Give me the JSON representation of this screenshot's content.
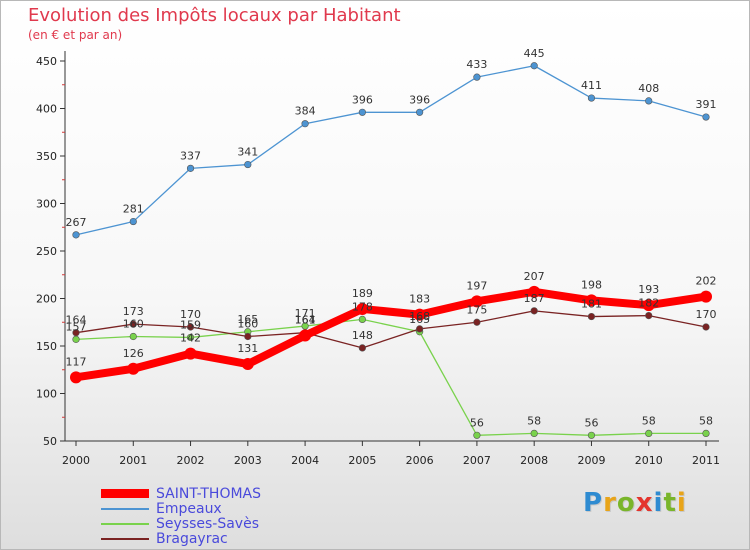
{
  "header": {
    "title": "Evolution des Impôts locaux par Habitant",
    "subtitle": "(en € et par an)"
  },
  "brand": {
    "letters": [
      "P",
      "r",
      "o",
      "x",
      "i",
      "t",
      "i"
    ],
    "colors": [
      "#2e8bd1",
      "#e8a419",
      "#79b52a",
      "#e4342d",
      "#2e8bd1",
      "#79b52a",
      "#e8a419"
    ]
  },
  "colors": {
    "title": "#e0394d",
    "legend_text": "#4a4adb",
    "axis": "#333333"
  },
  "chart_data": {
    "type": "line",
    "x": [
      "2000",
      "2001",
      "2002",
      "2003",
      "2004",
      "2005",
      "2006",
      "2007",
      "2008",
      "2009",
      "2010",
      "2011"
    ],
    "xlabel": "",
    "ylabel": "",
    "ylim": [
      50,
      450
    ],
    "yticks": [
      50,
      100,
      150,
      200,
      250,
      300,
      350,
      400,
      450
    ],
    "grid": false,
    "legend_position": "bottom-left",
    "series": [
      {
        "name": "SAINT-THOMAS",
        "color": "#ff0000",
        "emphasis": "thick",
        "values": [
          117,
          126,
          142,
          131,
          161,
          189,
          183,
          197,
          207,
          198,
          193,
          202
        ],
        "labels": [
          "117",
          "126",
          "142",
          "131",
          "161",
          "189",
          "183",
          "197",
          "207",
          "198",
          "193",
          "202"
        ]
      },
      {
        "name": "Empeaux",
        "color": "#4d94d2",
        "emphasis": "normal",
        "values": [
          267,
          281,
          337,
          341,
          384,
          396,
          396,
          433,
          445,
          411,
          408,
          391
        ],
        "labels": [
          "267",
          "281",
          "337",
          "341",
          "384",
          "396",
          "396",
          "433",
          "445",
          "411",
          "408",
          "391"
        ]
      },
      {
        "name": "Seysses-Savès",
        "color": "#79d24c",
        "emphasis": "normal",
        "values": [
          157,
          160,
          159,
          165,
          171,
          178,
          165,
          56,
          58,
          56,
          58,
          58
        ],
        "labels": [
          "157",
          "160",
          "159",
          "165",
          "171",
          "178",
          "165",
          "56",
          "58",
          "56",
          "58",
          "58"
        ]
      },
      {
        "name": "Bragayrac",
        "color": "#7a2323",
        "emphasis": "normal",
        "values": [
          164,
          173,
          170,
          160,
          164,
          148,
          168,
          175,
          187,
          181,
          182,
          170
        ],
        "labels": [
          "164",
          "173",
          "170",
          "160",
          "164",
          "148",
          "168",
          "175",
          "187",
          "181",
          "182",
          "170"
        ]
      }
    ]
  }
}
